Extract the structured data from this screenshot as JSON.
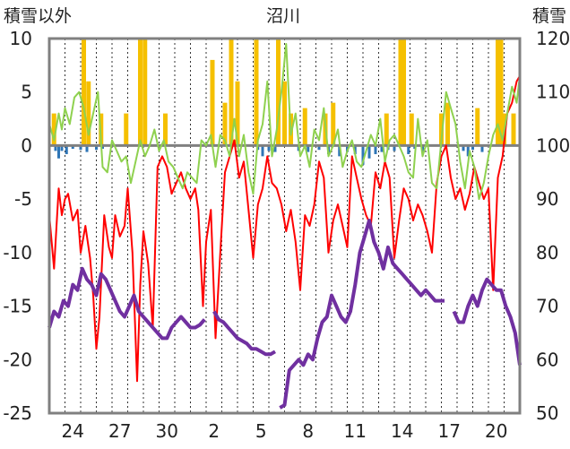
{
  "chart_data": {
    "type": "line",
    "title": "沼川",
    "ylabel_left": "積雪以外",
    "ylabel_right": "積雪",
    "ylim_left": [
      -25,
      10
    ],
    "ylim_right": [
      50,
      120
    ],
    "yticks_left": [
      "10",
      "5",
      "0",
      "-5",
      "-10",
      "-15",
      "-20",
      "-25"
    ],
    "yticks_right": [
      "120",
      "110",
      "100",
      "90",
      "80",
      "70",
      "60",
      "50"
    ],
    "xlim": [
      0,
      30
    ],
    "xtick_labels": [
      "24",
      "27",
      "30",
      "2",
      "5",
      "8",
      "11",
      "14",
      "17",
      "20"
    ],
    "xtick_positions": [
      1.5,
      4.5,
      7.5,
      10.5,
      13.5,
      16.5,
      19.5,
      22.5,
      25.5,
      28.5
    ],
    "grid": true,
    "colors": {
      "precip": "#f5c000",
      "melt": "#2e75b6",
      "temp": "#ff0000",
      "green": "#8fd14f",
      "snow": "#7030a0",
      "zero": "#808080",
      "frame": "#808080",
      "grid": "#333333"
    },
    "series": [
      {
        "axis": "left",
        "color": "#ff0000",
        "x": [
          0,
          0.3,
          0.6,
          0.8,
          1.0,
          1.2,
          1.5,
          1.8,
          2.0,
          2.3,
          2.6,
          2.8,
          3.0,
          3.2,
          3.5,
          3.8,
          4.0,
          4.2,
          4.5,
          4.8,
          5.0,
          5.3,
          5.6,
          5.8,
          6.0,
          6.3,
          6.6,
          6.9,
          7.2,
          7.5,
          7.8,
          8.1,
          8.4,
          8.7,
          9.0,
          9.3,
          9.5,
          9.8,
          10.0,
          10.3,
          10.6,
          10.9,
          11.2,
          11.5,
          11.8,
          12.1,
          12.4,
          12.7,
          13.0,
          13.3,
          13.6,
          13.9,
          14.2,
          14.5,
          14.8,
          15.1,
          15.4,
          15.7,
          16.0,
          16.3,
          16.6,
          16.9,
          17.2,
          17.5,
          17.8,
          18.1,
          18.4,
          18.7,
          19.0,
          19.3,
          19.6,
          19.9,
          20.2,
          20.5,
          20.8,
          21.1,
          21.4,
          21.7,
          22.0,
          22.3,
          22.6,
          22.9,
          23.2,
          23.5,
          23.8,
          24.1,
          24.4,
          24.7,
          25.0,
          25.3,
          25.6,
          25.9,
          26.2,
          26.5,
          26.8,
          27.1,
          27.4,
          27.7,
          28.0,
          28.3,
          28.6,
          28.9,
          29.2,
          29.5,
          29.8,
          30.0
        ],
        "values": [
          -6.5,
          -11.5,
          -4.0,
          -6.5,
          -5.0,
          -4.5,
          -7.0,
          -6.0,
          -10.0,
          -7.5,
          -10.5,
          -14.0,
          -19.0,
          -16.0,
          -6.5,
          -9.5,
          -10.5,
          -6.5,
          -8.5,
          -7.5,
          -4.0,
          -10.0,
          -22.0,
          -13.0,
          -8.0,
          -11.0,
          -17.0,
          -2.0,
          -1.0,
          -2.0,
          -4.5,
          -3.5,
          -2.5,
          -4.0,
          -5.0,
          -4.0,
          -6.0,
          -15.0,
          -9.0,
          -6.0,
          -18.0,
          -10.0,
          -2.5,
          -1.0,
          0.5,
          -3.0,
          -1.5,
          -6.0,
          -10.5,
          -5.5,
          -4.0,
          -1.0,
          -3.5,
          -4.0,
          -5.5,
          -8.0,
          -6.0,
          -9.0,
          -13.5,
          -6.5,
          -7.5,
          -5.5,
          -1.5,
          -3.0,
          -10.0,
          -7.0,
          -5.5,
          -7.5,
          -9.5,
          -1.0,
          -3.0,
          -5.0,
          -6.5,
          -7.5,
          -2.5,
          -4.0,
          -1.5,
          -3.0,
          -10.5,
          -7.0,
          -4.0,
          -5.0,
          -7.0,
          -5.5,
          -6.5,
          -8.0,
          -10.0,
          -3.5,
          -1.0,
          0.0,
          -3.0,
          -5.0,
          -4.0,
          -6.0,
          -4.5,
          -2.0,
          -3.5,
          -5.0,
          -4.0,
          -13.5,
          -3.0,
          -1.0,
          3.0,
          4.0,
          6.0,
          6.5
        ]
      },
      {
        "axis": "left",
        "color": "#8fd14f",
        "x": [
          0,
          0.3,
          0.6,
          0.8,
          1.0,
          1.3,
          1.6,
          1.9,
          2.2,
          2.5,
          2.8,
          3.1,
          3.4,
          3.7,
          4.0,
          4.3,
          4.6,
          4.9,
          5.2,
          5.5,
          5.8,
          6.1,
          6.4,
          6.7,
          7.0,
          7.3,
          7.6,
          7.9,
          8.2,
          8.5,
          8.8,
          9.1,
          9.4,
          9.7,
          10.0,
          10.3,
          10.6,
          10.9,
          11.2,
          11.5,
          11.8,
          12.1,
          12.4,
          12.7,
          13.0,
          13.3,
          13.6,
          13.9,
          14.2,
          14.5,
          14.8,
          15.1,
          15.4,
          15.7,
          16.0,
          16.3,
          16.6,
          16.9,
          17.2,
          17.5,
          17.8,
          18.1,
          18.4,
          18.7,
          19.0,
          19.3,
          19.6,
          19.9,
          20.2,
          20.5,
          20.8,
          21.1,
          21.4,
          21.7,
          22.0,
          22.3,
          22.6,
          22.9,
          23.2,
          23.5,
          23.8,
          24.1,
          24.4,
          24.7,
          25.0,
          25.3,
          25.6,
          25.9,
          26.2,
          26.5,
          26.8,
          27.1,
          27.4,
          27.7,
          28.0,
          28.3,
          28.6,
          28.9,
          29.2,
          29.5,
          29.8,
          30.0
        ],
        "values": [
          2.0,
          0.5,
          3.0,
          1.5,
          3.5,
          2.0,
          4.5,
          5.0,
          3.5,
          1.0,
          3.0,
          5.0,
          -2.0,
          -2.5,
          0.5,
          -0.5,
          -1.5,
          -1.0,
          -3.5,
          -1.5,
          0.5,
          -1.0,
          0.0,
          1.5,
          -0.5,
          0.5,
          -1.5,
          -2.0,
          -3.0,
          -4.0,
          -2.5,
          -3.0,
          -3.5,
          0.5,
          0.0,
          1.0,
          -2.0,
          1.0,
          0.5,
          -1.0,
          2.5,
          -1.0,
          1.0,
          -2.5,
          -4.5,
          0.5,
          2.0,
          6.0,
          -1.0,
          1.5,
          5.0,
          9.5,
          1.0,
          3.0,
          -1.0,
          0.0,
          -2.0,
          1.5,
          0.5,
          3.5,
          -1.0,
          0.0,
          1.5,
          -2.0,
          -0.5,
          0.5,
          -1.5,
          -2.0,
          -0.5,
          1.0,
          0.0,
          2.5,
          -1.5,
          0.5,
          1.0,
          0.0,
          -1.0,
          -2.5,
          -3.0,
          2.5,
          -1.0,
          0.5,
          -3.5,
          -4.0,
          0.5,
          5.0,
          3.5,
          2.0,
          -1.5,
          -4.0,
          -0.5,
          -2.0,
          -5.0,
          -3.5,
          -1.0,
          1.0,
          2.0,
          0.5,
          3.0,
          5.5,
          4.0,
          6.5
        ]
      },
      {
        "axis": "right",
        "color": "#7030a0",
        "segments": [
          {
            "x": [
              0,
              0.3,
              0.6,
              0.9,
              1.2,
              1.5,
              1.8,
              2.1,
              2.4,
              2.7,
              3.0,
              3.3,
              3.6,
              3.9,
              4.2,
              4.5,
              4.8,
              5.1,
              5.4,
              5.7,
              6.0,
              6.3,
              6.6,
              6.9,
              7.2,
              7.5,
              7.8,
              8.1,
              8.4,
              8.7,
              9.0,
              9.3,
              9.6,
              9.9
            ],
            "values": [
              66.0,
              69.0,
              68.0,
              71.0,
              70.0,
              74.0,
              73.0,
              77.0,
              75.0,
              74.0,
              72.0,
              76.0,
              75.0,
              73.0,
              71.0,
              69.0,
              68.0,
              70.0,
              72.0,
              69.0,
              68.0,
              67.0,
              66.0,
              65.0,
              64.0,
              64.0,
              66.0,
              67.0,
              68.0,
              67.0,
              66.0,
              66.0,
              66.5,
              67.5
            ]
          },
          {
            "x": [
              10.5,
              10.8,
              11.1,
              11.4,
              11.7,
              12.0,
              12.3,
              12.6,
              12.9,
              13.2,
              13.5,
              13.8,
              14.1,
              14.4
            ],
            "values": [
              69.0,
              67.5,
              67.0,
              66.0,
              65.0,
              64.0,
              63.5,
              63.0,
              62.0,
              62.0,
              61.5,
              61.0,
              61.0,
              61.5
            ]
          },
          {
            "x": [
              14.7,
              15.0,
              15.3,
              15.6,
              15.9,
              16.2,
              16.5,
              16.8,
              17.1,
              17.4,
              17.7,
              18.0,
              18.3,
              18.6,
              18.9,
              19.2,
              19.5,
              19.8,
              20.1,
              20.4,
              20.7,
              21.0,
              21.3,
              21.6,
              21.9,
              22.2,
              22.5,
              22.8,
              23.1,
              23.4,
              23.7,
              24.0,
              24.3,
              24.6,
              24.9,
              25.2
            ],
            "values": [
              51.0,
              51.5,
              58.0,
              59.0,
              60.0,
              59.0,
              61.0,
              60.0,
              64.0,
              67.0,
              68.0,
              72.0,
              70.0,
              68.0,
              67.0,
              69.0,
              74.0,
              80.0,
              83.0,
              86.0,
              82.0,
              80.0,
              77.0,
              81.0,
              78.0,
              77.0,
              76.0,
              75.0,
              74.0,
              73.0,
              72.0,
              73.0,
              72.0,
              71.0,
              71.0,
              71.0
            ]
          },
          {
            "x": [
              25.8,
              26.1,
              26.4,
              26.7,
              27.0,
              27.3,
              27.6,
              27.9,
              28.2,
              28.5,
              28.8,
              29.1,
              29.4,
              29.7,
              30.0
            ],
            "values": [
              69.0,
              67.0,
              67.0,
              70.0,
              72.0,
              70.0,
              73.0,
              75.0,
              74.0,
              73.0,
              73.0,
              70.0,
              68.0,
              65.0,
              59.0
            ]
          }
        ]
      },
      {
        "type": "bar",
        "axis": "left",
        "color": "#f5c000",
        "x": [
          0.3,
          2.2,
          2.5,
          3.3,
          4.9,
          5.8,
          6.1,
          7.4,
          10.4,
          11.2,
          11.6,
          12.0,
          13.2,
          14.6,
          15.0,
          15.4,
          16.3,
          17.6,
          18.1,
          21.5,
          22.4,
          22.6,
          23.1,
          25.0,
          25.4,
          27.3,
          28.6,
          28.8,
          29.0,
          29.6
        ],
        "values": [
          3.0,
          10.0,
          6.0,
          3.0,
          3.0,
          10.0,
          10.0,
          3.0,
          8.0,
          4.0,
          10.0,
          6.0,
          10.0,
          10.0,
          6.0,
          3.0,
          3.5,
          3.0,
          4.0,
          3.0,
          10.0,
          10.0,
          3.0,
          3.0,
          4.0,
          3.5,
          10.0,
          10.0,
          3.0,
          3.0
        ]
      },
      {
        "type": "bar",
        "axis": "left",
        "color": "#2e75b6",
        "x": [
          0.4,
          0.6,
          0.8,
          1.1,
          1.5,
          2.0,
          2.4,
          3.0,
          3.4,
          13.3,
          13.6,
          14.0,
          14.4,
          15.9,
          16.5,
          17.2,
          17.8,
          18.5,
          19.0,
          19.5,
          20.0,
          20.4,
          20.8,
          21.2,
          21.6,
          22.0,
          22.9,
          23.3,
          23.8,
          26.4,
          26.7,
          27.0,
          27.6
        ],
        "values": [
          -0.5,
          -1.2,
          -0.5,
          -0.8,
          -0.3,
          -0.4,
          -0.6,
          -0.4,
          -0.3,
          -0.4,
          -1.0,
          -0.5,
          -0.6,
          -0.5,
          -0.6,
          -0.4,
          -0.8,
          -1.0,
          -0.6,
          -0.8,
          -1.8,
          -1.2,
          -0.8,
          -0.6,
          -0.4,
          -0.5,
          -0.8,
          -0.3,
          -0.6,
          -0.5,
          -1.0,
          -0.4,
          -0.6
        ]
      }
    ]
  }
}
